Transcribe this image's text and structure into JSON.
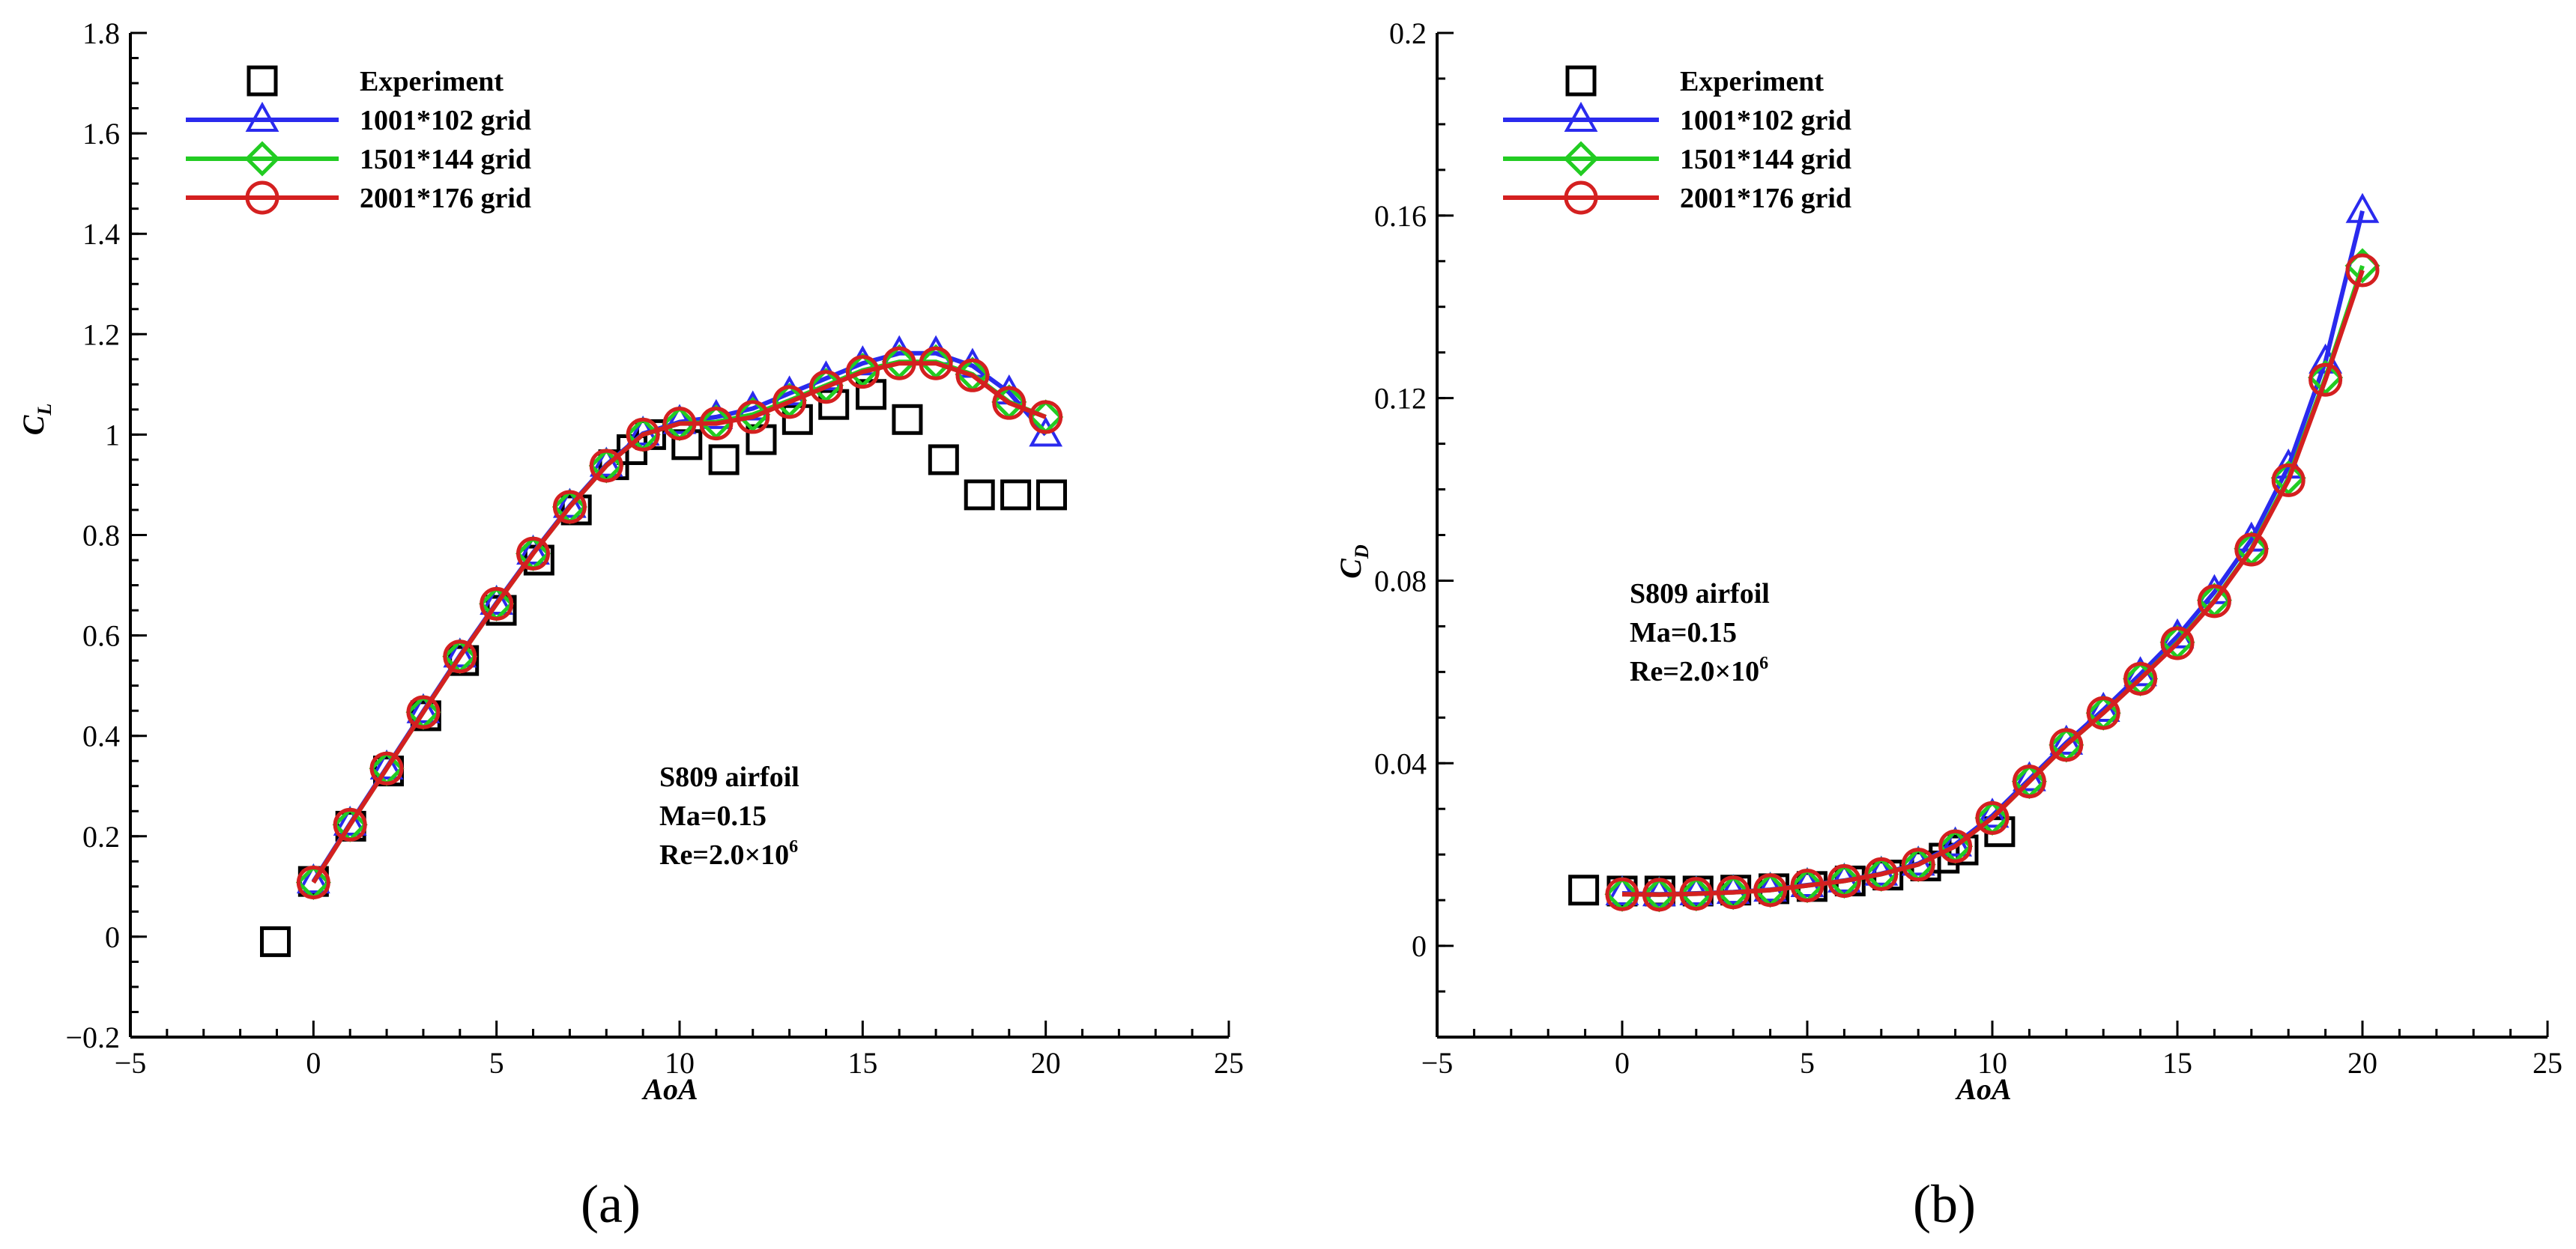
{
  "chart_data": [
    {
      "id": "a",
      "type": "line",
      "panel_label": "(a)",
      "xlabel": "AoA",
      "ylabel_main": "C",
      "ylabel_sub": "L",
      "xlim": [
        -5,
        25
      ],
      "ylim": [
        -0.2,
        1.8
      ],
      "xticks": [
        -5,
        0,
        5,
        10,
        15,
        20,
        25
      ],
      "yticks": [
        -0.2,
        0,
        0.2,
        0.4,
        0.6,
        0.8,
        1,
        1.2,
        1.4,
        1.6,
        1.8
      ],
      "xtick_labels": [
        "−5",
        "0",
        "5",
        "10",
        "15",
        "20",
        "25"
      ],
      "ytick_labels": [
        "−0.2",
        "0",
        "0.2",
        "0.4",
        "0.6",
        "0.8",
        "1",
        "1.2",
        "1.4",
        "1.6",
        "1.8"
      ],
      "legend_position": "top-left",
      "annotation": {
        "line1": "S809 airfoil",
        "line2": "Ma=0.15",
        "line3_base": "Re=2.0×10",
        "line3_exp": "6"
      },
      "series": [
        {
          "name": "Experiment",
          "marker": "square",
          "color": "#000000",
          "x": [
            -1.04,
            0,
            1.02,
            2.05,
            3.07,
            4.1,
            5.13,
            6.16,
            7.18,
            8.2,
            8.7,
            9.21,
            10.2,
            11.21,
            12.23,
            13.22,
            14.21,
            15.23,
            16.22,
            17.21,
            18.19,
            19.18,
            20.16
          ],
          "y": [
            -0.01,
            0.11,
            0.22,
            0.33,
            0.44,
            0.55,
            0.65,
            0.75,
            0.85,
            0.94,
            0.97,
            1.0,
            0.98,
            0.95,
            0.99,
            1.03,
            1.06,
            1.08,
            1.03,
            0.95,
            0.88,
            0.88,
            0.88
          ]
        },
        {
          "name": "1001*102 grid",
          "marker": "triangle",
          "color": "#2a2aee",
          "x": [
            0,
            1,
            2,
            3,
            4,
            5,
            6,
            7,
            8,
            9,
            10,
            11,
            12,
            13,
            14,
            15,
            16,
            17,
            18,
            19,
            20
          ],
          "y": [
            0.11,
            0.225,
            0.337,
            0.449,
            0.56,
            0.665,
            0.765,
            0.858,
            0.94,
            1.002,
            1.025,
            1.035,
            1.052,
            1.082,
            1.112,
            1.142,
            1.162,
            1.162,
            1.137,
            1.084,
            1.0
          ]
        },
        {
          "name": "1501*144 grid",
          "marker": "diamond",
          "color": "#22cc22",
          "x": [
            0,
            1,
            2,
            3,
            4,
            5,
            6,
            7,
            8,
            9,
            10,
            11,
            12,
            13,
            14,
            15,
            16,
            17,
            18,
            19,
            20
          ],
          "y": [
            0.108,
            0.223,
            0.335,
            0.447,
            0.558,
            0.663,
            0.763,
            0.856,
            0.938,
            1.0,
            1.022,
            1.025,
            1.04,
            1.068,
            1.098,
            1.128,
            1.145,
            1.145,
            1.12,
            1.065,
            1.035
          ]
        },
        {
          "name": "2001*176 grid",
          "marker": "circle",
          "color": "#d42020",
          "x": [
            0,
            1,
            2,
            3,
            4,
            5,
            6,
            7,
            8,
            9,
            10,
            11,
            12,
            13,
            14,
            15,
            16,
            17,
            18,
            19,
            20
          ],
          "y": [
            0.108,
            0.223,
            0.335,
            0.447,
            0.558,
            0.663,
            0.763,
            0.856,
            0.938,
            1.0,
            1.022,
            1.022,
            1.035,
            1.065,
            1.095,
            1.125,
            1.142,
            1.142,
            1.118,
            1.063,
            1.035
          ]
        }
      ]
    },
    {
      "id": "b",
      "type": "line",
      "panel_label": "(b)",
      "xlabel": "AoA",
      "ylabel_main": "C",
      "ylabel_sub": "D",
      "xlim": [
        -5,
        25
      ],
      "ylim": [
        -0.02,
        0.2
      ],
      "xticks": [
        -5,
        0,
        5,
        10,
        15,
        20,
        25
      ],
      "yticks": [
        0,
        0.04,
        0.08,
        0.12,
        0.16,
        0.2
      ],
      "xtick_labels": [
        "−5",
        "0",
        "5",
        "10",
        "15",
        "20",
        "25"
      ],
      "ytick_labels": [
        "0",
        "0.04",
        "0.08",
        "0.12",
        "0.16",
        "0.2"
      ],
      "legend_position": "top-left",
      "annotation": {
        "line1": "S809 airfoil",
        "line2": "Ma=0.15",
        "line3_base": "Re=2.0×10",
        "line3_exp": "6"
      },
      "series": [
        {
          "name": "Experiment",
          "marker": "square",
          "color": "#000000",
          "x": [
            -1.04,
            0,
            1.02,
            2.05,
            3.07,
            4.1,
            5.13,
            6.16,
            7.18,
            8.2,
            8.7,
            9.21,
            10.2
          ],
          "y": [
            0.0122,
            0.012,
            0.012,
            0.012,
            0.0122,
            0.0125,
            0.013,
            0.0142,
            0.0155,
            0.0175,
            0.0192,
            0.021,
            0.025
          ]
        },
        {
          "name": "1001*102 grid",
          "marker": "triangle",
          "color": "#2a2aee",
          "x": [
            0,
            1,
            2,
            3,
            4,
            5,
            6,
            7,
            8,
            9,
            10,
            11,
            12,
            13,
            14,
            15,
            16,
            17,
            18,
            19,
            20
          ],
          "y": [
            0.0115,
            0.0113,
            0.0115,
            0.0118,
            0.0123,
            0.0133,
            0.0143,
            0.0158,
            0.018,
            0.0222,
            0.0285,
            0.0365,
            0.0445,
            0.0517,
            0.0595,
            0.0678,
            0.0775,
            0.089,
            0.105,
            0.128,
            0.161
          ]
        },
        {
          "name": "1501*144 grid",
          "marker": "diamond",
          "color": "#22cc22",
          "x": [
            0,
            1,
            2,
            3,
            4,
            5,
            6,
            7,
            8,
            9,
            10,
            11,
            12,
            13,
            14,
            15,
            16,
            17,
            18,
            19,
            20
          ],
          "y": [
            0.0113,
            0.0112,
            0.0114,
            0.0117,
            0.0122,
            0.0132,
            0.0142,
            0.0157,
            0.0178,
            0.0218,
            0.028,
            0.036,
            0.044,
            0.051,
            0.0585,
            0.0665,
            0.0757,
            0.087,
            0.1025,
            0.1245,
            0.149
          ]
        },
        {
          "name": "2001*176 grid",
          "marker": "circle",
          "color": "#d42020",
          "x": [
            0,
            1,
            2,
            3,
            4,
            5,
            6,
            7,
            8,
            9,
            10,
            11,
            12,
            13,
            14,
            15,
            16,
            17,
            18,
            19,
            20
          ],
          "y": [
            0.0113,
            0.0112,
            0.0114,
            0.0117,
            0.0122,
            0.0132,
            0.0142,
            0.0157,
            0.0178,
            0.0218,
            0.028,
            0.036,
            0.044,
            0.051,
            0.0585,
            0.0663,
            0.0755,
            0.0868,
            0.102,
            0.124,
            0.148
          ]
        }
      ]
    }
  ]
}
